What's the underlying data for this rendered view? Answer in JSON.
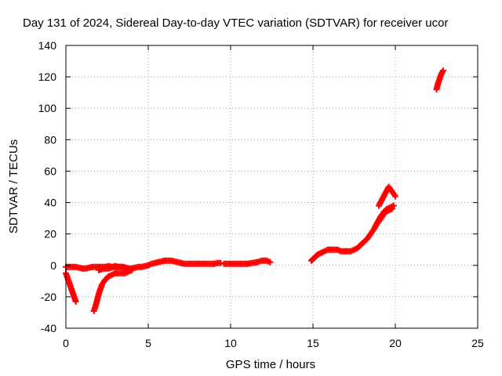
{
  "chart_data": {
    "type": "scatter",
    "title": "Day 131 of 2024, Sidereal Day-to-day VTEC variation (SDTVAR) for receiver ucor",
    "xlabel": "GPS time / hours",
    "ylabel": "SDTVAR / TECUs",
    "xlim": [
      0,
      25
    ],
    "ylim": [
      -40,
      140
    ],
    "xticks": [
      0,
      5,
      10,
      15,
      20,
      25
    ],
    "yticks": [
      -40,
      -20,
      0,
      20,
      40,
      60,
      80,
      100,
      120,
      140
    ],
    "grid": true,
    "marker": "plus",
    "colors": {
      "series": "#ff0000",
      "grid": "#a0a0a0",
      "axis": "#000000"
    },
    "series": [
      {
        "name": "SDTVAR",
        "segments": [
          {
            "x": [
              0.0,
              0.2,
              0.4,
              0.6,
              0.8,
              1.0,
              1.2,
              1.4,
              1.6,
              1.8,
              2.0,
              2.2,
              2.4,
              2.6,
              2.8,
              3.0,
              3.2,
              3.4,
              3.6,
              3.8,
              4.0,
              4.2,
              4.4,
              4.6,
              4.8,
              5.0,
              5.2,
              5.4,
              5.6,
              5.8,
              6.0,
              6.2,
              6.4,
              6.6,
              6.8,
              7.0,
              7.2,
              7.4,
              7.6,
              7.8,
              8.0,
              8.2,
              8.4,
              8.6,
              8.8,
              9.0,
              9.2,
              9.4
            ],
            "y": [
              -1,
              -1,
              -1,
              -1,
              -1.5,
              -2,
              -2,
              -1.5,
              -1,
              -1,
              -1,
              -1,
              -1,
              -0.5,
              -1,
              -0.5,
              -1,
              -1,
              -1.5,
              -2,
              -2,
              -1.5,
              -1,
              -1,
              -0.5,
              0,
              1,
              1.5,
              2,
              2.5,
              3,
              3,
              3,
              2.5,
              2,
              1.5,
              1,
              1,
              1,
              1,
              1,
              1,
              1,
              1,
              1,
              1,
              1.5,
              1.5
            ]
          },
          {
            "x": [
              0.0,
              0.1,
              0.2,
              0.3,
              0.4,
              0.5,
              0.6
            ],
            "y": [
              -5,
              -8,
              -11,
              -14,
              -17,
              -20,
              -23
            ]
          },
          {
            "x": [
              1.7,
              1.8,
              1.9,
              2.0,
              2.1,
              2.2,
              2.4,
              2.6,
              2.8,
              3.0,
              3.2,
              3.4,
              3.6,
              3.8,
              4.0
            ],
            "y": [
              -29,
              -26,
              -22,
              -18,
              -15,
              -12,
              -9,
              -7,
              -6,
              -5,
              -5,
              -5,
              -5,
              -4,
              -3
            ]
          },
          {
            "x": [
              2.0,
              2.3,
              2.6,
              2.9,
              3.2,
              3.5,
              3.8
            ],
            "y": [
              -3,
              -2,
              -2,
              -1,
              -1,
              -1,
              -2
            ]
          },
          {
            "x": [
              9.6,
              9.9,
              10.2,
              10.6,
              11.0,
              11.3,
              11.6,
              11.9,
              12.2,
              12.4
            ],
            "y": [
              1,
              1,
              1,
              1,
              1,
              1.5,
              2,
              3,
              3,
              2
            ]
          },
          {
            "x": [
              14.9,
              15.0,
              15.1,
              15.2,
              15.3,
              15.5,
              15.7,
              15.9,
              16.1,
              16.3,
              16.5,
              16.7,
              16.9,
              17.1,
              17.3,
              17.5,
              17.7,
              17.9,
              18.1,
              18.3,
              18.5,
              18.7,
              18.9,
              19.1,
              19.3,
              19.5,
              19.7,
              19.9
            ],
            "y": [
              3,
              4,
              5,
              6,
              7,
              8,
              9,
              10,
              10,
              10,
              10,
              9,
              9,
              9,
              9,
              10,
              11,
              13,
              15,
              17,
              20,
              23,
              27,
              31,
              34,
              36,
              37,
              38
            ]
          },
          {
            "x": [
              19.0,
              19.2,
              19.4,
              19.6,
              19.8,
              20.0
            ],
            "y": [
              38,
              42,
              46,
              50,
              47,
              44
            ]
          },
          {
            "x": [
              18.8,
              19.0,
              19.2,
              19.4,
              19.6,
              19.8
            ],
            "y": [
              25,
              28,
              31,
              34,
              35,
              36
            ]
          },
          {
            "x": [
              22.5,
              22.6,
              22.7,
              22.8,
              22.9
            ],
            "y": [
              112,
              116,
              119,
              122,
              124
            ]
          }
        ]
      }
    ]
  }
}
